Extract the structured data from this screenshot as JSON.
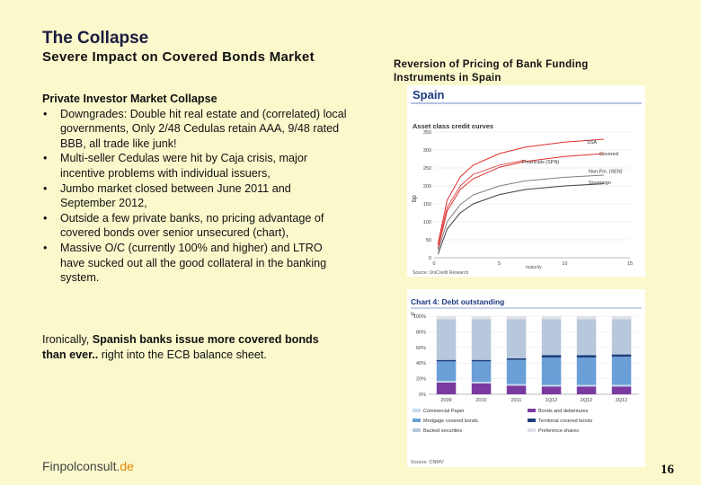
{
  "title": "The Collapse",
  "subtitle": "Severe Impact on Covered Bonds Market",
  "right_heading": "Reversion of Pricing of Bank Funding Instruments in Spain",
  "body": {
    "lead": "Private Investor Market Collapse",
    "bullets": [
      "Downgrades:  Double hit real estate and (correlated) local governments, Only 2/48 Cedulas retain AAA, 9/48 rated  BBB, all trade like junk!",
      "Multi-seller Cedulas were hit by Caja crisis, major incentive problems with individual issuers,",
      "Jumbo market closed between June 2011 and September 2012,",
      "Outside a few private banks, no pricing advantage of covered bonds over senior unsecured (chart),",
      "Massive O/C (currently 100% and higher) and LTRO have sucked out all the good collateral in the banking system."
    ]
  },
  "ironic": {
    "prefix": "Ironically, ",
    "bold": "Spanish banks issue more covered bonds than ever..",
    "suffix": " right into the ECB balance sheet."
  },
  "footer": {
    "brand": "Finpolconsult.",
    "tld": "de",
    "page": "16"
  },
  "chart_data": [
    {
      "type": "line",
      "header": "Spain",
      "title": "Asset class credit curves",
      "ylabel": "bp",
      "xlabel": "maturity",
      "source": "Source: UniCredit Research",
      "x_ticks": [
        0,
        5,
        10,
        15
      ],
      "y_ticks": [
        0,
        50,
        100,
        150,
        200,
        250,
        300,
        350
      ],
      "xlim": [
        0,
        15
      ],
      "ylim": [
        0,
        350
      ],
      "series": [
        {
          "name": "SSA",
          "x": [
            0.3,
            1,
            2,
            3,
            5,
            7,
            10,
            13
          ],
          "y": [
            40,
            160,
            225,
            258,
            290,
            308,
            322,
            330
          ],
          "color": "#e03030"
        },
        {
          "name": "Covered",
          "x": [
            0.3,
            1,
            2,
            3,
            5,
            7,
            10,
            13
          ],
          "y": [
            25,
            130,
            190,
            220,
            252,
            268,
            282,
            290
          ],
          "color": "#e03030"
        },
        {
          "name": "Financials (SPN)",
          "x": [
            0.3,
            1,
            2,
            3,
            5,
            7
          ],
          "y": [
            35,
            140,
            200,
            232,
            258,
            272
          ],
          "color": "#e05050"
        },
        {
          "name": "Non-Fin. (SEN)",
          "x": [
            0.3,
            1,
            2,
            3,
            5,
            7,
            10,
            13
          ],
          "y": [
            20,
            100,
            148,
            175,
            200,
            214,
            224,
            230
          ],
          "color": "#808080"
        },
        {
          "name": "Sovereign",
          "x": [
            0.3,
            1,
            2,
            3,
            5,
            7,
            10,
            13
          ],
          "y": [
            10,
            80,
            125,
            150,
            176,
            190,
            200,
            206
          ],
          "color": "#404040"
        }
      ]
    },
    {
      "type": "bar",
      "title": "Chart 4:  Debt outstanding",
      "ylabel": "%",
      "source": "Source: CNMV",
      "categories": [
        "2009",
        "2010",
        "2011",
        "1Q12",
        "2Q12",
        "3Q12"
      ],
      "y_ticks": [
        "0%",
        "20%",
        "40%",
        "60%",
        "80%",
        "100%"
      ],
      "series": [
        {
          "name": "Commercial Paper",
          "values": [
            2,
            2,
            2,
            2,
            2,
            2
          ],
          "color": "#c8dcf0"
        },
        {
          "name": "Bonds and debentures",
          "values": [
            15,
            14,
            11,
            10,
            10,
            10
          ],
          "color": "#7a3aa0"
        },
        {
          "name": "Mortgage covered bonds",
          "values": [
            25,
            26,
            31,
            35,
            35,
            36
          ],
          "color": "#6a9fd8"
        },
        {
          "name": "Territorial covered bonds",
          "values": [
            2,
            2,
            2,
            3,
            3,
            3
          ],
          "color": "#1f3f7a"
        },
        {
          "name": "Backed securities",
          "values": [
            52,
            52,
            50,
            46,
            46,
            45
          ],
          "color": "#b8c8dc"
        },
        {
          "name": "Preference shares",
          "values": [
            4,
            4,
            4,
            4,
            4,
            4
          ],
          "color": "#e0e0e8"
        }
      ],
      "ylim": [
        0,
        100
      ]
    }
  ]
}
